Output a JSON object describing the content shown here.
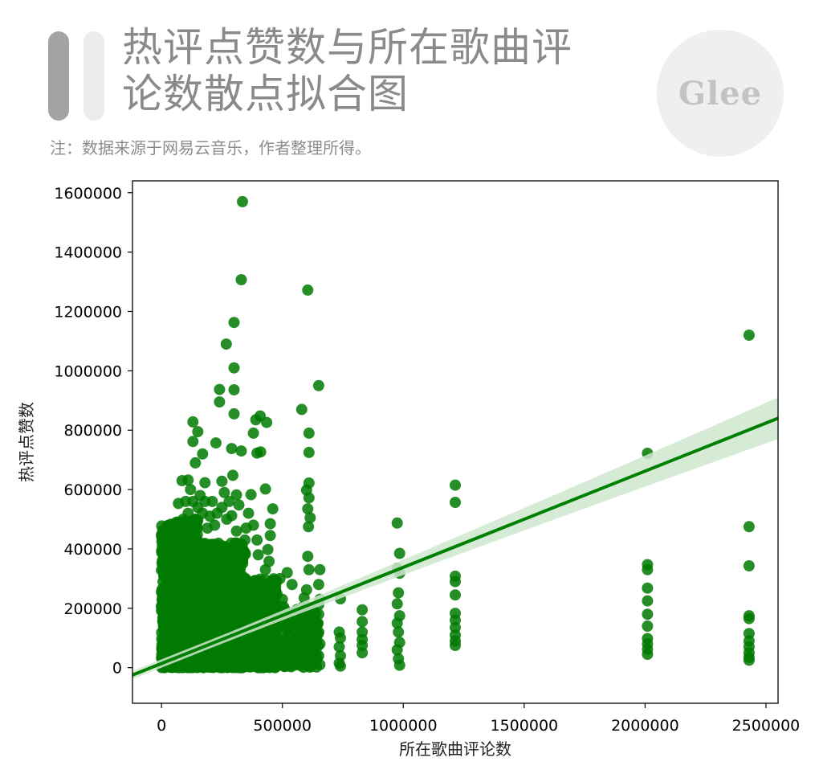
{
  "header": {
    "title_line1": "热评点赞数与所在歌曲评",
    "title_line2": "论数散点拟合图",
    "note": "注：数据来源于网易云音乐，作者整理所得。",
    "logo_text": "Glee"
  },
  "chart_data": {
    "type": "scatter",
    "xlabel": "所在歌曲评论数",
    "ylabel": "热评点赞数",
    "xlim": [
      -120000,
      2550000
    ],
    "ylim": [
      -120000,
      1640000
    ],
    "xticks": [
      0,
      500000,
      1000000,
      1500000,
      2000000,
      2500000
    ],
    "yticks": [
      0,
      200000,
      400000,
      600000,
      800000,
      1000000,
      1200000,
      1400000,
      1600000
    ],
    "xtick_labels": [
      "0",
      "500000",
      "1000000",
      "1500000",
      "2000000",
      "2500000"
    ],
    "ytick_labels": [
      "0",
      "200000",
      "400000",
      "600000",
      "800000",
      "1000000",
      "1200000",
      "1400000",
      "1600000"
    ],
    "point_color": "#007a00",
    "line_color": "#008000",
    "band_color": "#cfe8cf",
    "regression": {
      "slope": 0.324,
      "intercept": 14000,
      "x_range": [
        -120000,
        2550000
      ],
      "ci_halfwidth_at_max": 70000
    },
    "grid": false,
    "points": [
      [
        335000,
        1570000
      ],
      [
        330000,
        1307000
      ],
      [
        605000,
        1272000
      ],
      [
        300000,
        1163000
      ],
      [
        268000,
        1090000
      ],
      [
        300000,
        1010000
      ],
      [
        240000,
        937000
      ],
      [
        300000,
        936000
      ],
      [
        240000,
        895000
      ],
      [
        650000,
        950000
      ],
      [
        2430000,
        1120000
      ],
      [
        2010000,
        722000
      ],
      [
        580000,
        870000
      ],
      [
        130000,
        828000
      ],
      [
        150000,
        795000
      ],
      [
        300000,
        855000
      ],
      [
        408000,
        848000
      ],
      [
        435000,
        826000
      ],
      [
        390000,
        835000
      ],
      [
        610000,
        790000
      ],
      [
        610000,
        725000
      ],
      [
        130000,
        762000
      ],
      [
        225000,
        757000
      ],
      [
        290000,
        738000
      ],
      [
        330000,
        730000
      ],
      [
        395000,
        723000
      ],
      [
        410000,
        727000
      ],
      [
        380000,
        790000
      ],
      [
        1215000,
        615000
      ],
      [
        1215000,
        557000
      ],
      [
        610000,
        622000
      ],
      [
        600000,
        598000
      ],
      [
        610000,
        572000
      ],
      [
        605000,
        535000
      ],
      [
        615000,
        505000
      ],
      [
        608000,
        475000
      ],
      [
        605000,
        375000
      ],
      [
        610000,
        330000
      ],
      [
        600000,
        262000
      ],
      [
        650000,
        212000
      ],
      [
        590000,
        235000
      ],
      [
        580000,
        195000
      ],
      [
        460000,
        535000
      ],
      [
        450000,
        485000
      ],
      [
        450000,
        445000
      ],
      [
        440000,
        398000
      ],
      [
        445000,
        358000
      ],
      [
        370000,
        583000
      ],
      [
        310000,
        582000
      ],
      [
        430000,
        602000
      ],
      [
        320000,
        548000
      ],
      [
        290000,
        512000
      ],
      [
        295000,
        648000
      ],
      [
        250000,
        628000
      ],
      [
        180000,
        623000
      ],
      [
        110000,
        632000
      ],
      [
        70000,
        553000
      ],
      [
        85000,
        630000
      ],
      [
        140000,
        690000
      ],
      [
        170000,
        720000
      ],
      [
        975000,
        487000
      ],
      [
        985000,
        385000
      ],
      [
        975000,
        335000
      ],
      [
        985000,
        318000
      ],
      [
        980000,
        252000
      ],
      [
        975000,
        215000
      ],
      [
        985000,
        175000
      ],
      [
        975000,
        150000
      ],
      [
        980000,
        120000
      ],
      [
        985000,
        85000
      ],
      [
        975000,
        60000
      ],
      [
        980000,
        30000
      ],
      [
        985000,
        8000
      ],
      [
        830000,
        195000
      ],
      [
        830000,
        155000
      ],
      [
        830000,
        120000
      ],
      [
        830000,
        95000
      ],
      [
        830000,
        75000
      ],
      [
        830000,
        50000
      ],
      [
        740000,
        232000
      ],
      [
        735000,
        120000
      ],
      [
        740000,
        100000
      ],
      [
        735000,
        70000
      ],
      [
        740000,
        40000
      ],
      [
        735000,
        15000
      ],
      [
        740000,
        5000
      ],
      [
        655000,
        330000
      ],
      [
        650000,
        280000
      ],
      [
        655000,
        230000
      ],
      [
        650000,
        180000
      ],
      [
        650000,
        120000
      ],
      [
        655000,
        80000
      ],
      [
        650000,
        40000
      ],
      [
        655000,
        10000
      ],
      [
        1215000,
        308000
      ],
      [
        1215000,
        290000
      ],
      [
        1215000,
        245000
      ],
      [
        1215000,
        183000
      ],
      [
        1215000,
        160000
      ],
      [
        1215000,
        135000
      ],
      [
        1215000,
        110000
      ],
      [
        1215000,
        90000
      ],
      [
        1215000,
        75000
      ],
      [
        2010000,
        347000
      ],
      [
        2010000,
        330000
      ],
      [
        2010000,
        268000
      ],
      [
        2010000,
        225000
      ],
      [
        2010000,
        180000
      ],
      [
        2010000,
        140000
      ],
      [
        2010000,
        98000
      ],
      [
        2010000,
        80000
      ],
      [
        2010000,
        62000
      ],
      [
        2010000,
        45000
      ],
      [
        2430000,
        475000
      ],
      [
        2430000,
        343000
      ],
      [
        2430000,
        175000
      ],
      [
        2430000,
        165000
      ],
      [
        2430000,
        115000
      ],
      [
        2430000,
        90000
      ],
      [
        2430000,
        70000
      ],
      [
        2430000,
        50000
      ],
      [
        2430000,
        35000
      ],
      [
        2430000,
        25000
      ],
      [
        560000,
        95000
      ],
      [
        520000,
        60000
      ],
      [
        480000,
        100000
      ],
      [
        500000,
        230000
      ],
      [
        520000,
        180000
      ],
      [
        545000,
        150000
      ],
      [
        470000,
        30000
      ],
      [
        500000,
        15000
      ],
      [
        560000,
        25000
      ],
      [
        540000,
        280000
      ],
      [
        520000,
        320000
      ],
      [
        490000,
        300000
      ],
      [
        470000,
        255000
      ],
      [
        460000,
        200000
      ],
      [
        430000,
        330000
      ],
      [
        410000,
        270000
      ],
      [
        420000,
        150000
      ],
      [
        400000,
        380000
      ],
      [
        395000,
        430000
      ],
      [
        380000,
        480000
      ],
      [
        360000,
        520000
      ],
      [
        350000,
        470000
      ],
      [
        345000,
        430000
      ],
      [
        330000,
        390000
      ],
      [
        325000,
        350000
      ],
      [
        310000,
        460000
      ],
      [
        305000,
        420000
      ],
      [
        280000,
        560000
      ],
      [
        270000,
        500000
      ],
      [
        260000,
        590000
      ],
      [
        250000,
        540000
      ],
      [
        230000,
        520000
      ],
      [
        220000,
        480000
      ],
      [
        210000,
        560000
      ],
      [
        200000,
        510000
      ],
      [
        190000,
        470000
      ],
      [
        180000,
        560000
      ],
      [
        170000,
        520000
      ],
      [
        160000,
        580000
      ],
      [
        150000,
        540000
      ],
      [
        140000,
        500000
      ],
      [
        130000,
        560000
      ],
      [
        120000,
        600000
      ],
      [
        110000,
        520000
      ],
      [
        100000,
        560000
      ],
      [
        95000,
        480000
      ],
      [
        90000,
        500000
      ],
      [
        80000,
        450000
      ],
      [
        75000,
        420000
      ],
      [
        60000,
        400000
      ],
      [
        55000,
        340000
      ],
      [
        45000,
        300000
      ],
      [
        40000,
        260000
      ],
      [
        35000,
        220000
      ],
      [
        30000,
        180000
      ],
      [
        25000,
        140000
      ],
      [
        20000,
        100000
      ],
      [
        15000,
        70000
      ],
      [
        10000,
        40000
      ],
      [
        8000,
        20000
      ],
      [
        5000,
        10000
      ],
      [
        3000,
        5000
      ]
    ],
    "dense_clusters": [
      {
        "x_range": [
          0,
          150000
        ],
        "y_range": [
          0,
          500000
        ],
        "count": 950
      },
      {
        "x_range": [
          100000,
          350000
        ],
        "y_range": [
          0,
          420000
        ],
        "count": 1100
      },
      {
        "x_range": [
          300000,
          480000
        ],
        "y_range": [
          0,
          300000
        ],
        "count": 450
      },
      {
        "x_range": [
          450000,
          650000
        ],
        "y_range": [
          0,
          210000
        ],
        "count": 180
      }
    ]
  }
}
